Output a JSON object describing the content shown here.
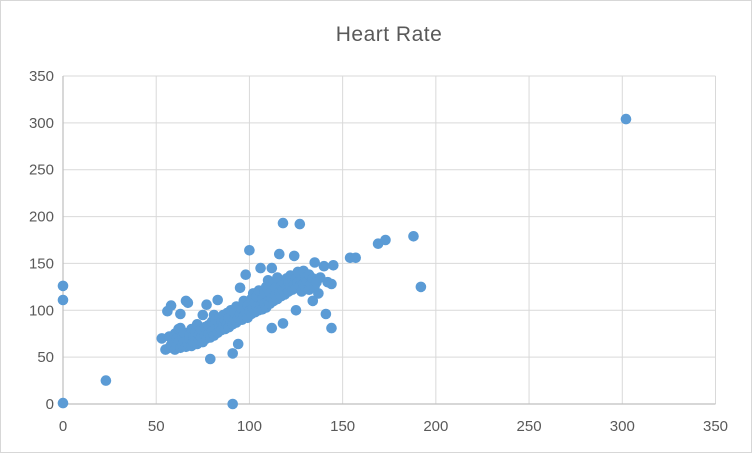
{
  "chart_data": {
    "type": "scatter",
    "title": "Heart Rate",
    "xlabel": "",
    "ylabel": "",
    "xlim": [
      0,
      350
    ],
    "ylim": [
      0,
      350
    ],
    "x_ticks": [
      0,
      50,
      100,
      150,
      200,
      250,
      300,
      350
    ],
    "y_ticks": [
      0,
      50,
      100,
      150,
      200,
      250,
      300,
      350
    ],
    "grid": true,
    "legend": "none",
    "marker_radius": 5.3,
    "colors": {
      "marker": "#5B9BD5",
      "gridline": "#D9D9D9",
      "axis_line": "#BFBFBF",
      "tick_label": "#595959",
      "title": "#595959",
      "chart_border": "#D7D7D7",
      "background": "#FFFFFF"
    },
    "points": [
      [
        0,
        1
      ],
      [
        0,
        111
      ],
      [
        0,
        126
      ],
      [
        23,
        25
      ],
      [
        53,
        70
      ],
      [
        55,
        58
      ],
      [
        56,
        99
      ],
      [
        57,
        60
      ],
      [
        57,
        72
      ],
      [
        58,
        63
      ],
      [
        58,
        105
      ],
      [
        59,
        68
      ],
      [
        60,
        58
      ],
      [
        60,
        75
      ],
      [
        61,
        62
      ],
      [
        61,
        70
      ],
      [
        62,
        66
      ],
      [
        62,
        80
      ],
      [
        63,
        60
      ],
      [
        63,
        81
      ],
      [
        63,
        96
      ],
      [
        64,
        63
      ],
      [
        64,
        72
      ],
      [
        65,
        67
      ],
      [
        65,
        76
      ],
      [
        66,
        61
      ],
      [
        66,
        110
      ],
      [
        67,
        64
      ],
      [
        67,
        108
      ],
      [
        68,
        69
      ],
      [
        68,
        74
      ],
      [
        69,
        62
      ],
      [
        69,
        80
      ],
      [
        70,
        66
      ],
      [
        70,
        73
      ],
      [
        71,
        70
      ],
      [
        71,
        77
      ],
      [
        72,
        64
      ],
      [
        72,
        85
      ],
      [
        73,
        68
      ],
      [
        73,
        74
      ],
      [
        74,
        71
      ],
      [
        74,
        80
      ],
      [
        75,
        66
      ],
      [
        75,
        95
      ],
      [
        76,
        73
      ],
      [
        76,
        82
      ],
      [
        77,
        70
      ],
      [
        77,
        106
      ],
      [
        78,
        75
      ],
      [
        78,
        84
      ],
      [
        79,
        48
      ],
      [
        79,
        71
      ],
      [
        80,
        78
      ],
      [
        80,
        88
      ],
      [
        81,
        73
      ],
      [
        81,
        95
      ],
      [
        82,
        80
      ],
      [
        82,
        90
      ],
      [
        83,
        76
      ],
      [
        83,
        111
      ],
      [
        84,
        82
      ],
      [
        84,
        92
      ],
      [
        85,
        79
      ],
      [
        85,
        88
      ],
      [
        86,
        84
      ],
      [
        86,
        95
      ],
      [
        87,
        80
      ],
      [
        87,
        90
      ],
      [
        88,
        85
      ],
      [
        88,
        97
      ],
      [
        89,
        82
      ],
      [
        89,
        92
      ],
      [
        90,
        88
      ],
      [
        90,
        100
      ],
      [
        91,
        0
      ],
      [
        91,
        54
      ],
      [
        91,
        85
      ],
      [
        92,
        90
      ],
      [
        92,
        98
      ],
      [
        93,
        87
      ],
      [
        93,
        104
      ],
      [
        94,
        64
      ],
      [
        94,
        92
      ],
      [
        95,
        96
      ],
      [
        95,
        124
      ],
      [
        96,
        90
      ],
      [
        96,
        101
      ],
      [
        97,
        94
      ],
      [
        97,
        110
      ],
      [
        98,
        97
      ],
      [
        98,
        138
      ],
      [
        99,
        92
      ],
      [
        99,
        105
      ],
      [
        100,
        99
      ],
      [
        100,
        164
      ],
      [
        101,
        96
      ],
      [
        101,
        112
      ],
      [
        102,
        102
      ],
      [
        102,
        118
      ],
      [
        103,
        98
      ],
      [
        103,
        108
      ],
      [
        104,
        104
      ],
      [
        104,
        115
      ],
      [
        105,
        100
      ],
      [
        105,
        121
      ],
      [
        106,
        105
      ],
      [
        106,
        145
      ],
      [
        107,
        101
      ],
      [
        107,
        112
      ],
      [
        108,
        107
      ],
      [
        108,
        118
      ],
      [
        109,
        103
      ],
      [
        109,
        125
      ],
      [
        110,
        110
      ],
      [
        110,
        132
      ],
      [
        111,
        107
      ],
      [
        111,
        118
      ],
      [
        112,
        81
      ],
      [
        112,
        113
      ],
      [
        112,
        145
      ],
      [
        113,
        110
      ],
      [
        113,
        129
      ],
      [
        114,
        116
      ],
      [
        114,
        124
      ],
      [
        115,
        112
      ],
      [
        115,
        135
      ],
      [
        116,
        119
      ],
      [
        116,
        160
      ],
      [
        117,
        115
      ],
      [
        117,
        126
      ],
      [
        118,
        86
      ],
      [
        118,
        122
      ],
      [
        118,
        193
      ],
      [
        119,
        117
      ],
      [
        119,
        128
      ],
      [
        120,
        124
      ],
      [
        120,
        134
      ],
      [
        121,
        120
      ],
      [
        121,
        130
      ],
      [
        122,
        126
      ],
      [
        122,
        137
      ],
      [
        123,
        122
      ],
      [
        123,
        132
      ],
      [
        124,
        128
      ],
      [
        124,
        158
      ],
      [
        125,
        100
      ],
      [
        125,
        124
      ],
      [
        125,
        134
      ],
      [
        126,
        130
      ],
      [
        126,
        141
      ],
      [
        127,
        126
      ],
      [
        127,
        192
      ],
      [
        128,
        120
      ],
      [
        128,
        132
      ],
      [
        129,
        128
      ],
      [
        129,
        142
      ],
      [
        130,
        125
      ],
      [
        130,
        135
      ],
      [
        131,
        131
      ],
      [
        132,
        122
      ],
      [
        132,
        138
      ],
      [
        133,
        128
      ],
      [
        134,
        110
      ],
      [
        134,
        134
      ],
      [
        135,
        126
      ],
      [
        135,
        151
      ],
      [
        136,
        130
      ],
      [
        137,
        118
      ],
      [
        138,
        135
      ],
      [
        140,
        147
      ],
      [
        141,
        96
      ],
      [
        142,
        130
      ],
      [
        144,
        81
      ],
      [
        144,
        128
      ],
      [
        145,
        148
      ],
      [
        154,
        156
      ],
      [
        157,
        156
      ],
      [
        169,
        171
      ],
      [
        173,
        175
      ],
      [
        188,
        179
      ],
      [
        192,
        125
      ],
      [
        302,
        304
      ]
    ]
  }
}
